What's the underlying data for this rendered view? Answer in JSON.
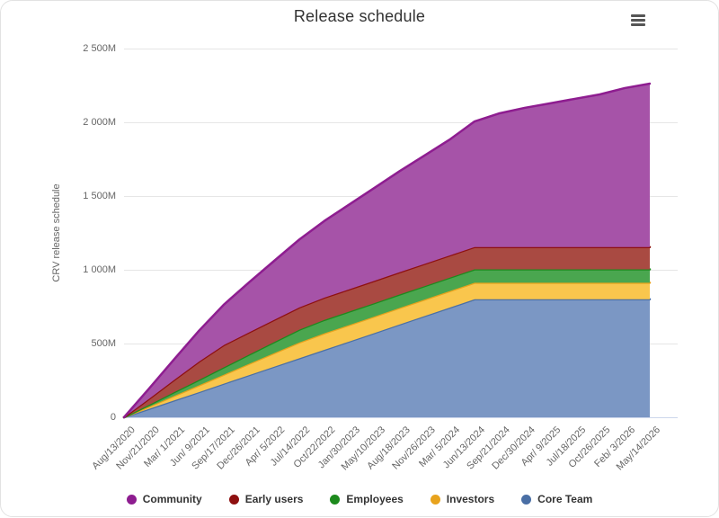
{
  "header": {
    "title": "Release schedule",
    "export_menu": "hamburger-menu"
  },
  "chart_data": {
    "type": "area",
    "stacking": "normal",
    "title": "Release schedule",
    "xlabel": "",
    "ylabel": "CRV release schedule",
    "unit": "M",
    "grid": true,
    "legend_position": "bottom",
    "ylim": [
      0,
      2500
    ],
    "y_tick_values": [
      0,
      500,
      1000,
      1500,
      2000,
      2500
    ],
    "y_tick_labels": [
      "0",
      "500M",
      "1 000M",
      "1 500M",
      "2 000M",
      "2 500M"
    ],
    "categories": [
      "Aug/13/2020",
      "Nov/21/2020",
      "Mar/ 1/2021",
      "Jun/ 9/2021",
      "Sep/17/2021",
      "Dec/26/2021",
      "Apr/ 5/2022",
      "Jul/14/2022",
      "Oct/22/2022",
      "Jan/30/2023",
      "May/10/2023",
      "Aug/18/2023",
      "Nov/26/2023",
      "Mar/ 5/2024",
      "Jun/13/2024",
      "Sep/21/2024",
      "Dec/30/2024",
      "Apr/ 9/2025",
      "Jul/18/2025",
      "Oct/26/2025",
      "Feb/ 3/2026",
      "May/14/2026"
    ],
    "series": [
      {
        "name": "Core Team",
        "color": "#4a6fa5",
        "fill": "#7b97c4",
        "values": [
          0,
          57,
          114,
          171,
          229,
          286,
          343,
          400,
          457,
          514,
          571,
          629,
          686,
          743,
          800,
          800,
          800,
          800,
          800,
          800,
          800,
          800
        ]
      },
      {
        "name": "Investors",
        "color": "#e8a31d",
        "fill": "#f9c64d",
        "values": [
          0,
          15,
          31,
          46,
          61,
          77,
          92,
          107,
          112,
          112,
          112,
          112,
          112,
          112,
          112,
          112,
          112,
          112,
          112,
          112,
          112,
          112
        ]
      },
      {
        "name": "Employees",
        "color": "#1d8a1d",
        "fill": "#4aa64f",
        "values": [
          0,
          12,
          25,
          37,
          50,
          62,
          75,
          87,
          91,
          91,
          91,
          91,
          91,
          91,
          91,
          91,
          91,
          91,
          91,
          91,
          91,
          91
        ]
      },
      {
        "name": "Early users",
        "color": "#8e1010",
        "fill": "#a94a42",
        "values": [
          0,
          41,
          83,
          124,
          151,
          151,
          151,
          151,
          151,
          151,
          151,
          151,
          151,
          151,
          151,
          151,
          151,
          151,
          151,
          151,
          151,
          151
        ]
      },
      {
        "name": "Community",
        "color": "#8e1d90",
        "fill": "#a653a8",
        "values": [
          0,
          70,
          140,
          210,
          275,
          340,
          400,
          460,
          520,
          575,
          630,
          685,
          735,
          785,
          852,
          907,
          944,
          974,
          1005,
          1035,
          1078,
          1108
        ]
      }
    ],
    "legend_order": [
      "Community",
      "Early users",
      "Employees",
      "Investors",
      "Core Team"
    ]
  },
  "layout_colors": {
    "gridline": "#e6e6e6",
    "axis_line": "#ccd6eb",
    "label_text": "#666666",
    "title_text": "#333333"
  }
}
